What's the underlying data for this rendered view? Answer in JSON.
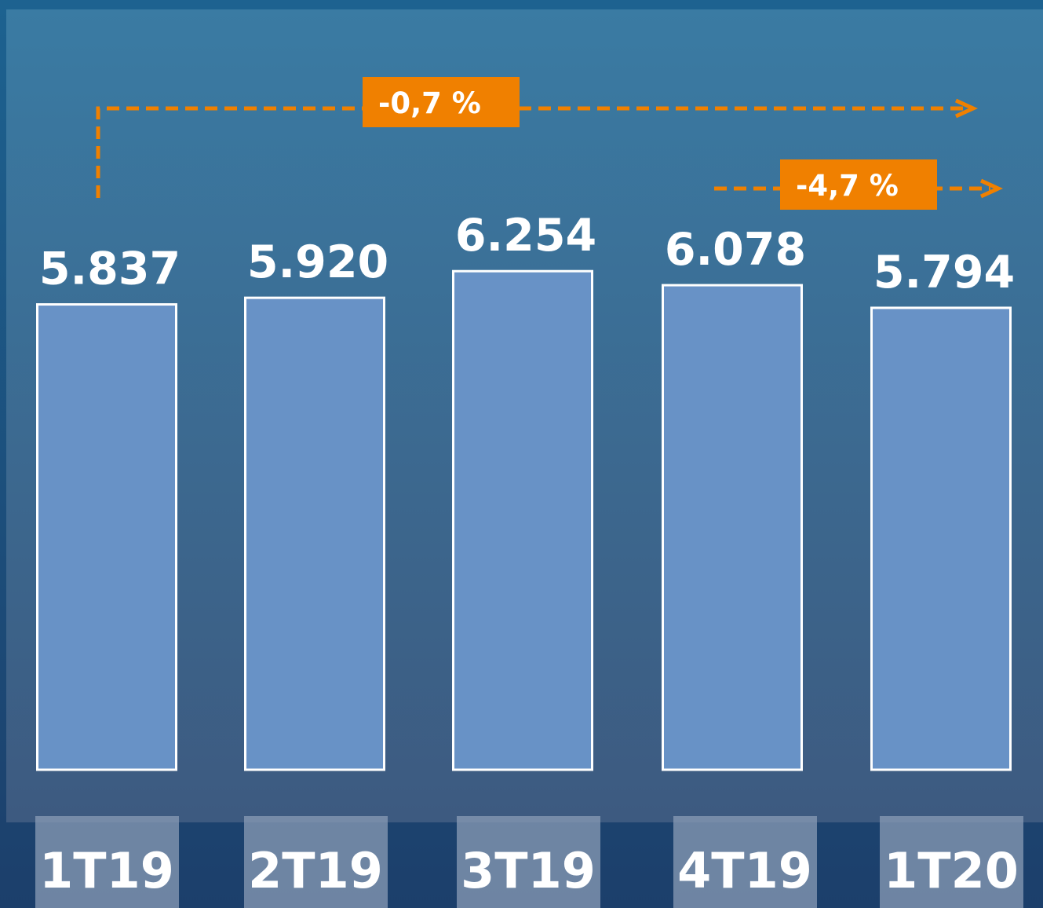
{
  "chart_data": {
    "type": "bar",
    "categories": [
      "1T19",
      "2T19",
      "3T19",
      "4T19",
      "1T20"
    ],
    "values": [
      5837,
      5920,
      6254,
      6078,
      5794
    ],
    "value_labels": [
      "5.837",
      "5.920",
      "6.254",
      "6.078",
      "5.794"
    ],
    "color": "#6892c6",
    "annotations": [
      {
        "text": "-0,7 %"
      },
      {
        "text": "-4,7 %"
      }
    ]
  }
}
